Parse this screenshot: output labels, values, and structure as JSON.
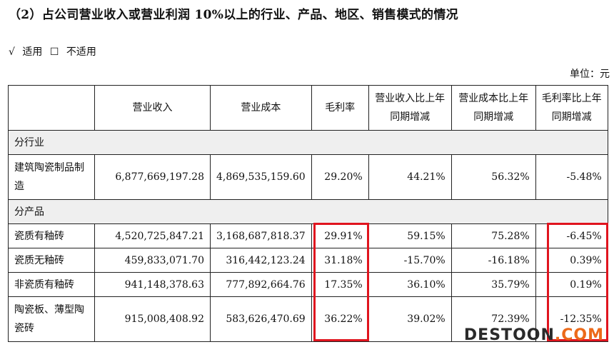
{
  "heading": "（2）占公司营业收入或营业利润 10%以上的行业、产品、地区、销售模式的情况",
  "applicability": {
    "check_mark": "√",
    "applicable": "适用",
    "box": "☐",
    "not_applicable": "不适用"
  },
  "unit": "单位：元",
  "table": {
    "columns": [
      "",
      "营业收入",
      "营业成本",
      "毛利率",
      "营业收入比上年同期增减",
      "营业成本比上年同期增减",
      "毛利率比上年同期增减"
    ],
    "sections": [
      {
        "label": "分行业",
        "rows": [
          {
            "name": "建筑陶瓷制品制造",
            "revenue": "6,877,669,197.28",
            "cost": "4,869,535,159.60",
            "margin": "29.20%",
            "rev_change": "44.21%",
            "cost_change": "56.32%",
            "margin_change": "-5.48%"
          }
        ]
      },
      {
        "label": "分产品",
        "rows": [
          {
            "name": "瓷质有釉砖",
            "revenue": "4,520,725,847.21",
            "cost": "3,168,687,818.37",
            "margin": "29.91%",
            "rev_change": "59.15%",
            "cost_change": "75.28%",
            "margin_change": "-6.45%"
          },
          {
            "name": "瓷质无釉砖",
            "revenue": "459,833,071.70",
            "cost": "316,442,123.24",
            "margin": "31.18%",
            "rev_change": "-15.70%",
            "cost_change": "-16.18%",
            "margin_change": "0.39%"
          },
          {
            "name": "非瓷质有釉砖",
            "revenue": "941,148,378.63",
            "cost": "777,892,664.76",
            "margin": "17.35%",
            "rev_change": "36.10%",
            "cost_change": "35.79%",
            "margin_change": "0.19%"
          },
          {
            "name": "陶瓷板、薄型陶瓷砖",
            "revenue": "915,008,408.92",
            "cost": "583,626,470.69",
            "margin": "36.22%",
            "rev_change": "39.02%",
            "cost_change": "72.39%",
            "margin_change": "-12.35%"
          }
        ]
      }
    ]
  },
  "watermark": {
    "dark": "DESTOON",
    "accent": ".COM"
  },
  "colors": {
    "highlight": "#e0141e",
    "section_bg": "#efefef",
    "watermark_accent": "#ec6a1a"
  }
}
